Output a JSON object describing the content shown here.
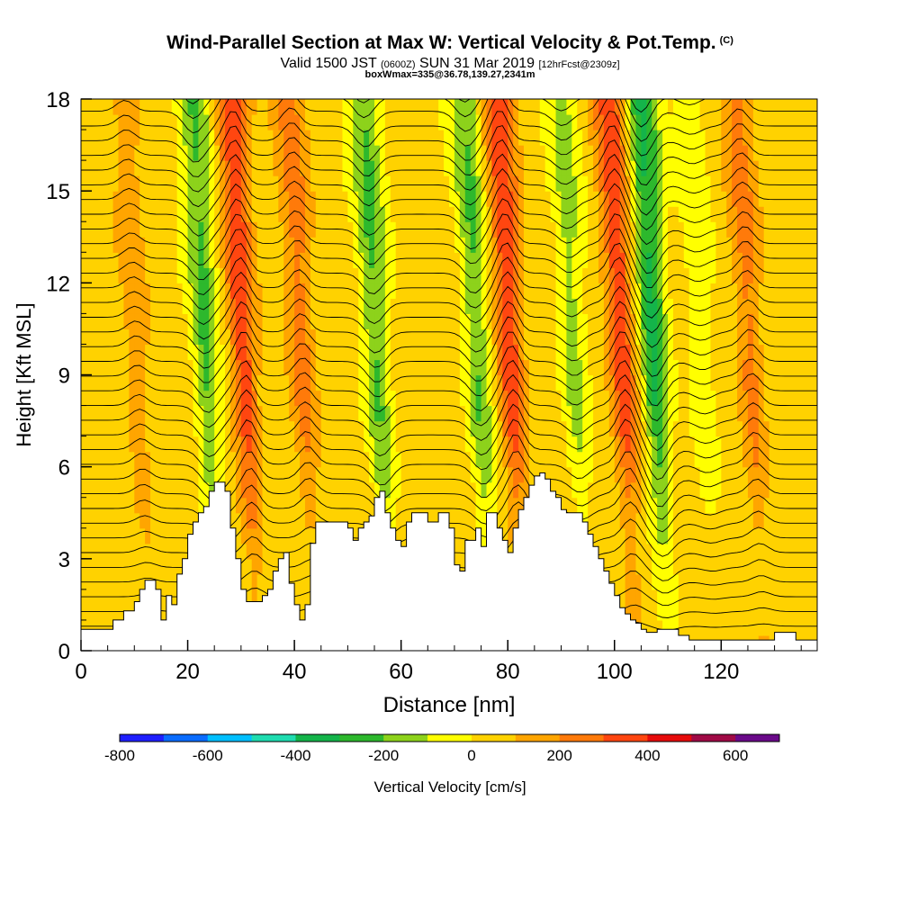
{
  "title": {
    "main": "Wind-Parallel Section at Max W: Vertical Velocity & Pot.Temp.",
    "copyright": "(C)",
    "valid_prefix": "Valid 1500 JST",
    "valid_utc": "(0600Z)",
    "valid_date": "SUN 31 Mar 2019",
    "forecast": "[12hrFcst@2309z]",
    "box": "boxWmax=335@36.78,139.27,2341m"
  },
  "chart_data": {
    "type": "heatmap",
    "xlabel": "Distance [nm]",
    "ylabel": "Height [Kft MSL]",
    "xlim": [
      0,
      138
    ],
    "ylim": [
      0,
      18
    ],
    "xticks": [
      0,
      20,
      40,
      60,
      80,
      100,
      120
    ],
    "yticks": [
      0,
      3,
      6,
      9,
      12,
      15,
      18
    ],
    "grid": false,
    "colorbar": {
      "label": "Vertical Velocity [cm/s]",
      "ticks": [
        -800,
        -600,
        -400,
        -200,
        0,
        200,
        400,
        600
      ],
      "bounds": [
        -800,
        700
      ],
      "step": 100,
      "colors": [
        "#1f1fff",
        "#0a6cff",
        "#00bfff",
        "#1fdcb0",
        "#14b44a",
        "#2db82d",
        "#8dd21b",
        "#ffff00",
        "#ffd200",
        "#ffa500",
        "#ff7a0a",
        "#ff4610",
        "#e60b0b",
        "#a00a46",
        "#6a0a8a"
      ]
    },
    "updrafts": [
      {
        "x": 32,
        "w": 330
      },
      {
        "x": 43,
        "w": 200
      },
      {
        "x": 82,
        "w": 335
      },
      {
        "x": 103,
        "w": 335
      },
      {
        "x": 127,
        "w": 190
      },
      {
        "x": 12,
        "w": 120
      }
    ],
    "downdrafts": [
      {
        "x": 25,
        "w": -260
      },
      {
        "x": 57,
        "w": -250
      },
      {
        "x": 76,
        "w": -240
      },
      {
        "x": 94,
        "w": -170
      },
      {
        "x": 109,
        "w": -360
      },
      {
        "x": 118,
        "w": -100
      }
    ],
    "terrain": {
      "x": [
        0,
        4,
        6,
        8,
        10,
        11,
        12,
        13,
        14,
        15,
        16,
        17,
        18,
        19,
        20,
        21,
        22,
        23,
        24,
        25,
        26,
        27,
        28,
        29,
        30,
        31,
        32,
        33,
        34,
        35,
        36,
        37,
        38,
        39,
        40,
        41,
        42,
        43,
        44,
        45,
        46,
        47,
        48,
        49,
        50,
        51,
        52,
        53,
        54,
        55,
        56,
        57,
        58,
        59,
        60,
        61,
        62,
        63,
        64,
        65,
        66,
        67,
        68,
        69,
        70,
        71,
        72,
        73,
        74,
        75,
        76,
        77,
        78,
        79,
        80,
        81,
        82,
        83,
        84,
        85,
        86,
        87,
        88,
        89,
        90,
        91,
        92,
        93,
        94,
        95,
        96,
        97,
        98,
        99,
        100,
        101,
        102,
        103,
        104,
        105,
        106,
        107,
        108,
        110,
        112,
        114,
        116,
        118,
        120,
        122,
        124,
        126,
        128,
        130,
        132,
        134,
        136,
        138
      ],
      "y": [
        0.7,
        0.7,
        1.0,
        1.3,
        1.6,
        2.0,
        2.3,
        2.3,
        2.0,
        1.0,
        1.8,
        1.5,
        2.5,
        3.0,
        3.8,
        4.2,
        4.5,
        4.7,
        5.2,
        5.5,
        5.5,
        5.2,
        4.0,
        3.0,
        2.0,
        1.6,
        1.6,
        1.6,
        1.8,
        2.0,
        2.6,
        3.0,
        3.2,
        2.2,
        1.5,
        1.0,
        1.5,
        3.5,
        4.2,
        4.2,
        4.2,
        4.2,
        4.2,
        4.2,
        4.0,
        3.6,
        4.0,
        4.2,
        4.4,
        5.0,
        5.2,
        4.5,
        4.0,
        3.6,
        3.4,
        4.2,
        4.5,
        4.5,
        4.5,
        4.2,
        4.2,
        4.5,
        4.5,
        4.0,
        2.8,
        2.6,
        3.6,
        3.6,
        4.0,
        3.4,
        4.5,
        4.5,
        4.0,
        3.6,
        3.2,
        4.0,
        4.6,
        5.0,
        5.4,
        5.7,
        5.8,
        5.6,
        5.2,
        5.0,
        4.6,
        4.5,
        4.5,
        4.5,
        4.2,
        3.8,
        3.4,
        3.0,
        2.6,
        2.2,
        1.8,
        1.4,
        1.2,
        1.0,
        0.9,
        0.7,
        0.6,
        0.6,
        0.7,
        0.7,
        0.5,
        0.35,
        0.35,
        0.35,
        0.35,
        0.35,
        0.35,
        0.35,
        0.35,
        0.6,
        0.6,
        0.35,
        0.35,
        0.45
      ]
    }
  }
}
